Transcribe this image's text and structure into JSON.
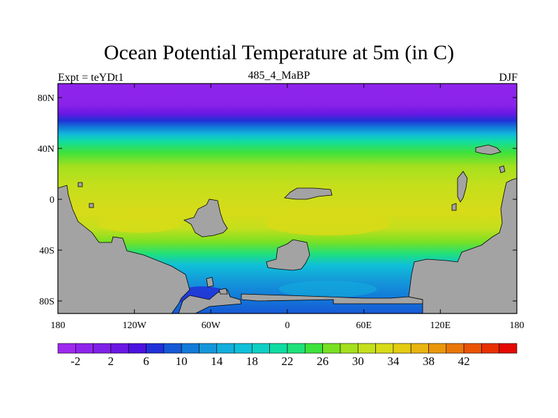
{
  "title": "Ocean Potential Temperature at 5m (in C)",
  "left_label": "Expt = teYDt1",
  "center_label": "485_4_MaBP",
  "right_label": "DJF",
  "lat_ticks": [
    "80N",
    "40N",
    "0",
    "40S",
    "80S"
  ],
  "lon_ticks": [
    "180",
    "120W",
    "60W",
    "0",
    "60E",
    "120E",
    "180"
  ],
  "colorbar": {
    "labels": [
      "-2",
      "2",
      "6",
      "10",
      "14",
      "18",
      "22",
      "26",
      "30",
      "34",
      "38",
      "42"
    ],
    "colors": [
      "#9f29ef",
      "#8f24ec",
      "#7f20e6",
      "#6a18e3",
      "#4c12df",
      "#2230d8",
      "#1659d6",
      "#127ad8",
      "#1497da",
      "#12aedc",
      "#0fc0d8",
      "#0dd0c4",
      "#10dca2",
      "#1fe17a",
      "#3ee23c",
      "#78e024",
      "#a4e01e",
      "#c4df1c",
      "#d8db18",
      "#e4cb14",
      "#e8b410",
      "#ea970c",
      "#ea7608",
      "#ea5404",
      "#e83002",
      "#e40a00"
    ]
  },
  "colors": {
    "land": "#a3a3a3",
    "coast": "#000000"
  }
}
